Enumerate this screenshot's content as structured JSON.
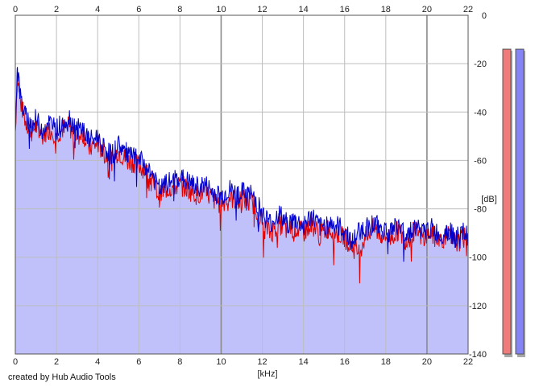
{
  "credit": "created by Hub Audio Tools",
  "colors": {
    "fill": "#c0c0fb",
    "channel_1": "#e00000",
    "channel_2": "#0000cc",
    "grid_minor": "#bdbdbd",
    "grid_major": "#8a8a8a",
    "meter_left": "#f07b7b",
    "meter_right": "#8484f4"
  },
  "chart_data": {
    "type": "line",
    "title": "",
    "xlabel": "[kHz]",
    "ylabel": "[dB]",
    "xlim": [
      0,
      22
    ],
    "ylim": [
      -140,
      0
    ],
    "x_ticks": [
      "0",
      "2",
      "4",
      "6",
      "8",
      "10",
      "12",
      "14",
      "16",
      "18",
      "20",
      "22"
    ],
    "y_ticks": [
      "0",
      "-20",
      "-40",
      "-60",
      "-80",
      "-100",
      "-120",
      "-140"
    ],
    "x_tick_values": [
      0,
      2,
      4,
      6,
      8,
      10,
      12,
      14,
      16,
      18,
      20,
      22
    ],
    "y_tick_values": [
      0,
      -20,
      -40,
      -60,
      -80,
      -100,
      -120,
      -140
    ],
    "major_x_gridlines": [
      10,
      20
    ],
    "grid": true,
    "series": [
      {
        "channel": "red",
        "x": [
          0,
          0.1,
          0.25,
          0.5,
          0.8,
          1.0,
          1.3,
          1.6,
          2.0,
          2.3,
          2.6,
          3.0,
          3.3,
          3.6,
          4.0,
          4.3,
          4.7,
          5.0,
          5.4,
          5.8,
          6.2,
          6.6,
          7.0,
          7.3,
          7.7,
          8.0,
          8.4,
          8.8,
          9.2,
          9.6,
          10.0,
          10.4,
          10.8,
          11.2,
          11.6,
          12.0,
          12.4,
          12.8,
          13.2,
          13.6,
          14.0,
          14.4,
          14.8,
          15.2,
          15.6,
          16.0,
          16.4,
          16.7,
          17.0,
          17.4,
          17.8,
          18.2,
          18.6,
          19.0,
          19.4,
          19.8,
          20.2,
          20.6,
          21.0,
          21.4,
          21.8,
          22.0
        ],
        "y": [
          -48,
          -25,
          -36,
          -44,
          -48,
          -46,
          -50,
          -47,
          -49,
          -47,
          -46,
          -50,
          -49,
          -55,
          -53,
          -57,
          -60,
          -56,
          -60,
          -61,
          -63,
          -67,
          -75,
          -72,
          -71,
          -70,
          -72,
          -74,
          -73,
          -76,
          -78,
          -75,
          -77,
          -76,
          -78,
          -86,
          -90,
          -86,
          -89,
          -88,
          -90,
          -86,
          -91,
          -88,
          -90,
          -92,
          -96,
          -98,
          -91,
          -88,
          -91,
          -92,
          -89,
          -93,
          -89,
          -92,
          -90,
          -93,
          -91,
          -94,
          -92,
          -93
        ]
      },
      {
        "channel": "blue",
        "x": [
          0,
          0.1,
          0.25,
          0.5,
          0.8,
          1.0,
          1.3,
          1.6,
          2.0,
          2.3,
          2.6,
          3.0,
          3.3,
          3.6,
          4.0,
          4.3,
          4.7,
          5.0,
          5.4,
          5.8,
          6.2,
          6.6,
          7.0,
          7.3,
          7.7,
          8.0,
          8.4,
          8.8,
          9.2,
          9.6,
          10.0,
          10.4,
          10.8,
          11.2,
          11.6,
          12.0,
          12.4,
          12.8,
          13.2,
          13.6,
          14.0,
          14.4,
          14.8,
          15.2,
          15.6,
          16.0,
          16.4,
          16.7,
          17.0,
          17.4,
          17.8,
          18.2,
          18.6,
          19.0,
          19.4,
          19.8,
          20.2,
          20.6,
          21.0,
          21.4,
          21.8,
          22.0
        ],
        "y": [
          -45,
          -21,
          -34,
          -42,
          -45,
          -43,
          -47,
          -44,
          -47,
          -44,
          -42,
          -47,
          -47,
          -52,
          -50,
          -54,
          -58,
          -53,
          -57,
          -59,
          -61,
          -65,
          -72,
          -70,
          -68,
          -67,
          -69,
          -71,
          -70,
          -73,
          -75,
          -72,
          -74,
          -73,
          -75,
          -82,
          -86,
          -82,
          -86,
          -85,
          -87,
          -83,
          -88,
          -86,
          -87,
          -89,
          -94,
          -89,
          -88,
          -86,
          -88,
          -89,
          -87,
          -91,
          -87,
          -90,
          -88,
          -91,
          -89,
          -92,
          -90,
          -91
        ]
      }
    ],
    "level_meters": [
      {
        "channel": "left",
        "level_db": -14
      },
      {
        "channel": "right",
        "level_db": -14
      }
    ]
  }
}
